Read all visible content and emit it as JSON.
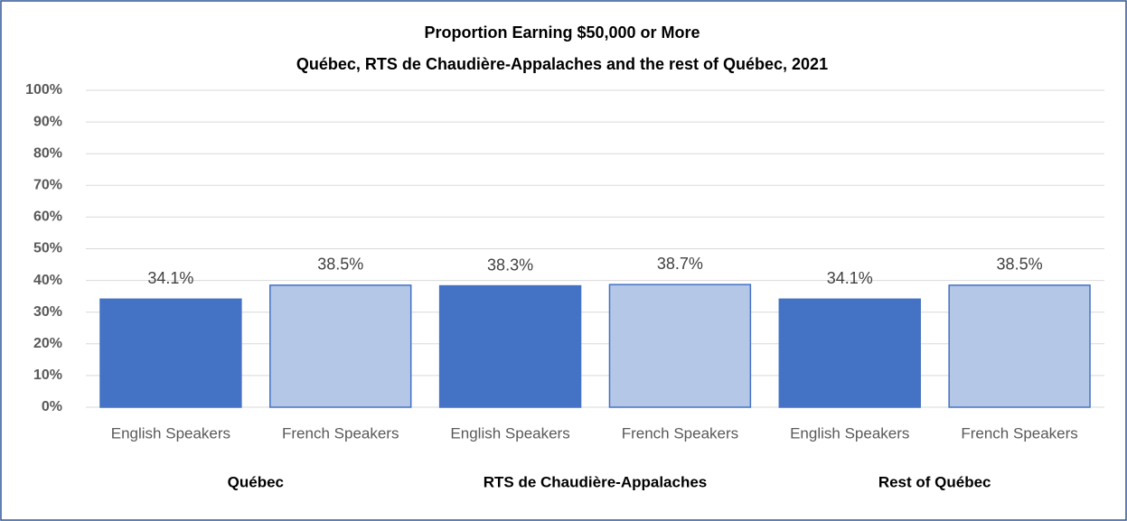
{
  "chart_data": {
    "type": "bar",
    "title": "Proportion Earning $50,000 or More",
    "subtitle": "Québec, RTS de Chaudière-Appalaches and the rest of Québec, 2021",
    "categories": [
      "English Speakers",
      "French Speakers",
      "English Speakers",
      "French Speakers",
      "English Speakers",
      "French Speakers"
    ],
    "groups": [
      "Québec",
      "RTS de Chaudière-Appalaches",
      "Rest of Québec"
    ],
    "values": [
      34.1,
      38.5,
      38.3,
      38.7,
      34.1,
      38.5
    ],
    "value_labels": [
      "34.1%",
      "38.5%",
      "38.3%",
      "38.7%",
      "34.1%",
      "38.5%"
    ],
    "colors": [
      "#4472c4",
      "#b4c7e7",
      "#4472c4",
      "#b4c7e7",
      "#4472c4",
      "#b4c7e7"
    ],
    "ylim": [
      0,
      100
    ],
    "yticks": [
      {
        "value": 0,
        "label": "0%"
      },
      {
        "value": 10,
        "label": "10%"
      },
      {
        "value": 20,
        "label": "20%"
      },
      {
        "value": 30,
        "label": "30%"
      },
      {
        "value": 40,
        "label": "40%"
      },
      {
        "value": 50,
        "label": "50%"
      },
      {
        "value": 60,
        "label": "60%"
      },
      {
        "value": 70,
        "label": "70%"
      },
      {
        "value": 80,
        "label": "80%"
      },
      {
        "value": 90,
        "label": "90%"
      },
      {
        "value": 100,
        "label": "100%"
      }
    ],
    "grid": true
  }
}
